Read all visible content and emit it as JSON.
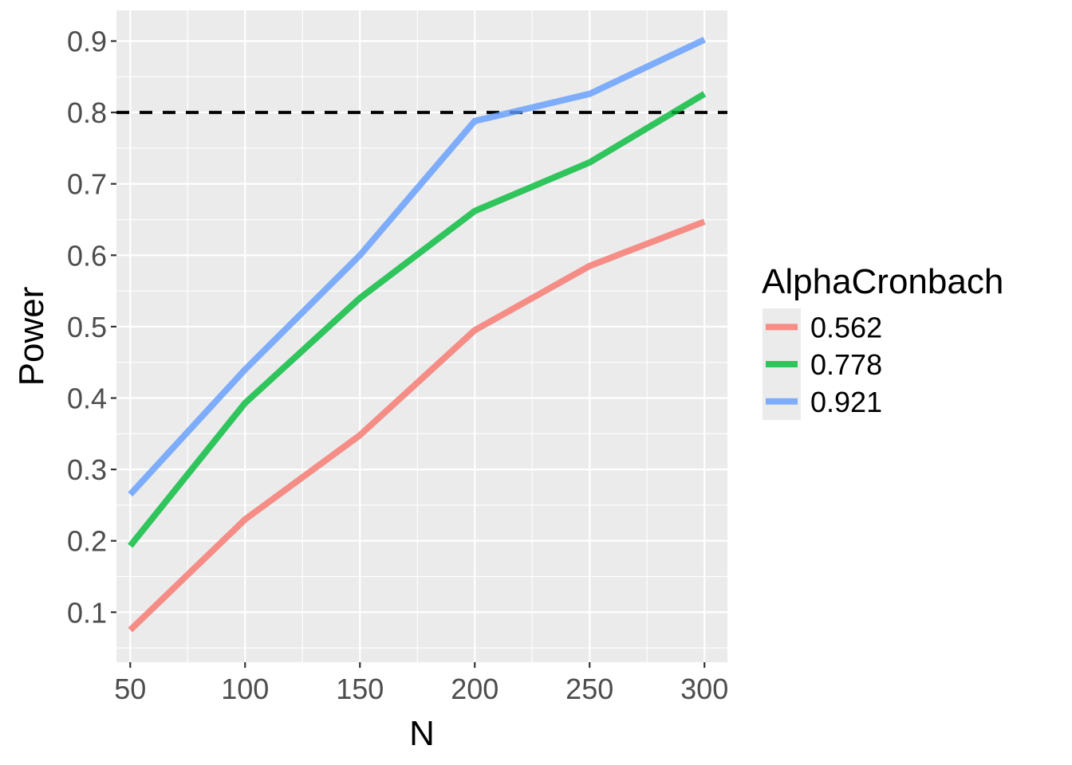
{
  "chart_data": {
    "type": "line",
    "xlabel": "N",
    "ylabel": "Power",
    "x": [
      50,
      100,
      150,
      200,
      250,
      300
    ],
    "xlim": [
      44,
      310
    ],
    "ylim": [
      0.03,
      0.943
    ],
    "x_ticks": [
      "50",
      "100",
      "150",
      "200",
      "250",
      "300"
    ],
    "y_ticks": [
      "0.1",
      "0.2",
      "0.3",
      "0.4",
      "0.5",
      "0.6",
      "0.7",
      "0.8",
      "0.9"
    ],
    "reference_line": {
      "y": 0.8,
      "style": "dashed",
      "color": "#000000"
    },
    "grid": true,
    "legend": {
      "title": "AlphaCronbach",
      "position": "right"
    },
    "series": [
      {
        "name": "0.562",
        "color": "#F8766D",
        "values": [
          0.075,
          0.23,
          0.348,
          0.495,
          0.585,
          0.647
        ]
      },
      {
        "name": "0.778",
        "color": "#00BA38",
        "values": [
          0.193,
          0.393,
          0.54,
          0.662,
          0.73,
          0.826
        ]
      },
      {
        "name": "0.921",
        "color": "#619CFF",
        "values": [
          0.265,
          0.44,
          0.6,
          0.788,
          0.826,
          0.902
        ]
      }
    ]
  }
}
